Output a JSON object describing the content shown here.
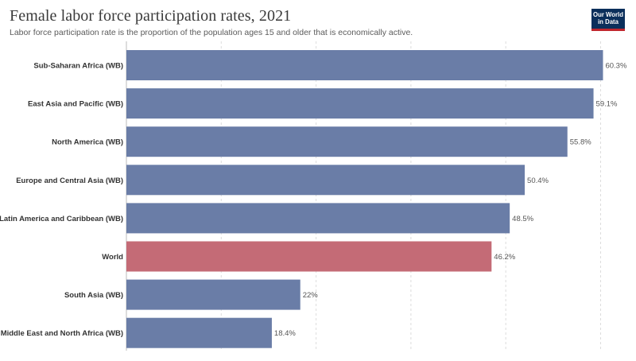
{
  "header": {
    "title": "Female labor force participation rates, 2021",
    "subtitle": "Labor force participation rate is the proportion of the population ages 15 and older that is economically active.",
    "logo_line1": "Our World",
    "logo_line2": "in Data"
  },
  "colors": {
    "bar_default": "#6a7da7",
    "bar_highlight": "#c46b76",
    "grid": "#dddddd"
  },
  "chart_data": {
    "type": "bar",
    "orientation": "horizontal",
    "categories": [
      "Sub-Saharan Africa (WB)",
      "East Asia and Pacific (WB)",
      "North America (WB)",
      "Europe and Central Asia (WB)",
      "Latin America and Caribbean (WB)",
      "World",
      "South Asia (WB)",
      "Middle East and North Africa (WB)"
    ],
    "values": [
      60.3,
      59.1,
      55.8,
      50.4,
      48.5,
      46.2,
      22,
      18.4
    ],
    "value_labels": [
      "60.3%",
      "59.1%",
      "55.8%",
      "50.4%",
      "48.5%",
      "46.2%",
      "22%",
      "18.4%"
    ],
    "highlight": [
      "World"
    ],
    "xlim": [
      0,
      60
    ],
    "grid": true,
    "gridlines_x": [
      0,
      12,
      24,
      36,
      48,
      60
    ]
  }
}
